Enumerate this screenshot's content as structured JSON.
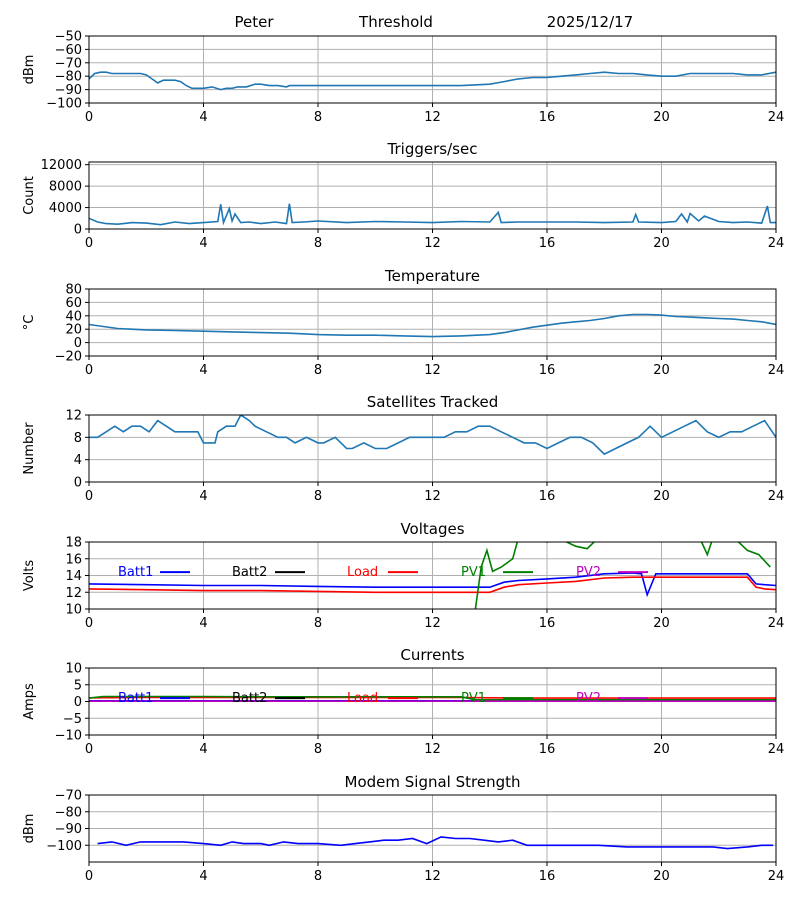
{
  "header": {
    "station": "Peter",
    "threshold": "Threshold",
    "date": "2025/12/17"
  },
  "colors": {
    "line": "#1f77b4",
    "grid": "#b0b0b0",
    "batt1": "#0000ff",
    "batt2": "#000000",
    "load": "#ff0000",
    "pv1": "#008000",
    "pv2": "#bf00bf"
  },
  "x_axis": {
    "ticks": [
      0,
      4,
      8,
      12,
      16,
      20,
      24
    ],
    "xlim": [
      0,
      24
    ]
  },
  "chart_data": [
    {
      "type": "line",
      "title": "",
      "ylabel": "dBm",
      "ylim": [
        -100,
        -50
      ],
      "yticks": [
        -100,
        -90,
        -80,
        -70,
        -60,
        -50
      ],
      "series": [
        {
          "color": "#1f77b4",
          "x": [
            0,
            0.2,
            0.4,
            0.6,
            0.8,
            1.0,
            1.2,
            1.5,
            1.8,
            2.0,
            2.2,
            2.4,
            2.6,
            2.8,
            3.0,
            3.2,
            3.4,
            3.6,
            3.8,
            4.0,
            4.3,
            4.6,
            4.8,
            5.0,
            5.2,
            5.5,
            5.8,
            6.0,
            6.3,
            6.6,
            6.9,
            7.0,
            7.5,
            8,
            9,
            10,
            11,
            12,
            13,
            14,
            14.5,
            15,
            15.5,
            16,
            16.5,
            17,
            17.5,
            18,
            18.5,
            19,
            19.5,
            20,
            20.5,
            21,
            21.5,
            22,
            22.5,
            23,
            23.5,
            24
          ],
          "y": [
            -82,
            -78,
            -77,
            -77,
            -78,
            -78,
            -78,
            -78,
            -78,
            -79,
            -82,
            -85,
            -83,
            -83,
            -83,
            -84,
            -87,
            -89,
            -89,
            -89,
            -88,
            -90,
            -89,
            -89,
            -88,
            -88,
            -86,
            -86,
            -87,
            -87,
            -88,
            -87,
            -87,
            -87,
            -87,
            -87,
            -87,
            -87,
            -87,
            -86,
            -84,
            -82,
            -81,
            -81,
            -80,
            -79,
            -78,
            -77,
            -78,
            -78,
            -79,
            -80,
            -80,
            -78,
            -78,
            -78,
            -78,
            -79,
            -79,
            -77
          ]
        }
      ]
    },
    {
      "type": "line",
      "title": "Triggers/sec",
      "ylabel": "Count",
      "ylim": [
        0,
        12500
      ],
      "yticks": [
        0,
        4000,
        8000,
        12000
      ],
      "series": [
        {
          "color": "#1f77b4",
          "x": [
            0,
            0.3,
            0.6,
            1.0,
            1.5,
            2.0,
            2.5,
            3.0,
            3.5,
            4.0,
            4.5,
            4.6,
            4.7,
            4.9,
            5.0,
            5.1,
            5.3,
            5.6,
            6.0,
            6.5,
            6.9,
            7.0,
            7.1,
            7.5,
            8,
            9,
            10,
            11,
            12,
            13,
            14,
            14.3,
            14.4,
            15,
            16,
            17,
            18,
            19,
            19.1,
            19.2,
            20,
            20.5,
            20.7,
            20.9,
            21,
            21.3,
            21.5,
            22,
            22.5,
            23,
            23.5,
            23.7,
            23.8,
            24
          ],
          "y": [
            2000,
            1300,
            1000,
            900,
            1200,
            1100,
            800,
            1300,
            1000,
            1200,
            1400,
            4600,
            1200,
            3800,
            1500,
            2800,
            1200,
            1300,
            1000,
            1300,
            1000,
            4700,
            1200,
            1300,
            1500,
            1200,
            1400,
            1300,
            1200,
            1400,
            1300,
            3100,
            1200,
            1300,
            1300,
            1300,
            1200,
            1300,
            2700,
            1300,
            1200,
            1400,
            2800,
            1300,
            2900,
            1500,
            2400,
            1400,
            1200,
            1300,
            1100,
            4300,
            1200,
            1200
          ]
        }
      ]
    },
    {
      "type": "line",
      "title": "Temperature",
      "ylabel": "°C",
      "ylim": [
        -20,
        80
      ],
      "yticks": [
        -20,
        0,
        20,
        40,
        60,
        80
      ],
      "series": [
        {
          "color": "#1f77b4",
          "x": [
            0,
            0.5,
            1,
            2,
            3,
            4,
            5,
            6,
            7,
            8,
            9,
            10,
            11,
            12,
            13,
            14,
            14.5,
            15,
            15.5,
            16,
            16.5,
            17,
            17.5,
            18,
            18.5,
            19,
            19.5,
            20,
            20.5,
            21,
            21.5,
            22,
            22.5,
            23,
            23.5,
            24
          ],
          "y": [
            27,
            24,
            21,
            19,
            18,
            17,
            16,
            15,
            14,
            12,
            11,
            11,
            10,
            9,
            10,
            12,
            15,
            19,
            23,
            26,
            29,
            31,
            33,
            36,
            40,
            42,
            42,
            41,
            39,
            38,
            37,
            36,
            35,
            33,
            31,
            27
          ]
        }
      ]
    },
    {
      "type": "line",
      "title": "Satellites Tracked",
      "ylabel": "Number",
      "ylim": [
        0,
        12
      ],
      "yticks": [
        0,
        4,
        8,
        12
      ],
      "series": [
        {
          "color": "#1f77b4",
          "x": [
            0,
            0.3,
            0.6,
            0.9,
            1.2,
            1.5,
            1.8,
            2.1,
            2.4,
            2.7,
            3.0,
            3.4,
            3.8,
            4.0,
            4.4,
            4.5,
            4.8,
            5.1,
            5.3,
            5.6,
            5.8,
            6.2,
            6.6,
            6.9,
            7.2,
            7.6,
            8.0,
            8.2,
            8.6,
            9.0,
            9.2,
            9.6,
            10.0,
            10.4,
            10.8,
            11.2,
            11.6,
            12.0,
            12.4,
            12.8,
            13.2,
            13.6,
            14.0,
            14.4,
            14.8,
            15.2,
            15.6,
            16.0,
            16.4,
            16.8,
            17.2,
            17.6,
            18.0,
            18.4,
            18.8,
            19.2,
            19.6,
            20.0,
            20.4,
            20.8,
            21.2,
            21.6,
            22.0,
            22.4,
            22.8,
            23.2,
            23.6,
            24
          ],
          "y": [
            8,
            8,
            9,
            10,
            9,
            10,
            10,
            9,
            11,
            10,
            9,
            9,
            9,
            7,
            7,
            9,
            10,
            10,
            12,
            11,
            10,
            9,
            8,
            8,
            7,
            8,
            7,
            7,
            8,
            6,
            6,
            7,
            6,
            6,
            7,
            8,
            8,
            8,
            8,
            9,
            9,
            10,
            10,
            9,
            8,
            7,
            7,
            6,
            7,
            8,
            8,
            7,
            5,
            6,
            7,
            8,
            10,
            8,
            9,
            10,
            11,
            9,
            8,
            9,
            9,
            10,
            11,
            8
          ]
        }
      ]
    },
    {
      "type": "line",
      "title": "Voltages",
      "ylabel": "Volts",
      "ylim": [
        10,
        18
      ],
      "yticks": [
        10,
        12,
        14,
        16,
        18
      ],
      "legend": [
        "Batt1",
        "Batt2",
        "Load",
        "PV1",
        "PV2"
      ],
      "series": [
        {
          "name": "Batt1",
          "color": "#0000ff",
          "x": [
            0,
            2,
            4,
            6,
            8,
            10,
            12,
            13,
            14,
            14.5,
            15,
            16,
            17,
            18,
            19,
            19.3,
            19.5,
            19.8,
            20,
            22,
            23,
            23.3,
            23.6,
            24
          ],
          "y": [
            13.0,
            12.9,
            12.8,
            12.8,
            12.7,
            12.6,
            12.6,
            12.6,
            12.6,
            13.2,
            13.4,
            13.6,
            13.8,
            14.2,
            14.3,
            14.2,
            11.7,
            14.2,
            14.2,
            14.2,
            14.2,
            13.0,
            12.9,
            12.8
          ]
        },
        {
          "name": "Load",
          "color": "#ff0000",
          "x": [
            0,
            2,
            4,
            6,
            8,
            10,
            12,
            13,
            14,
            14.5,
            15,
            16,
            17,
            18,
            19,
            20,
            22,
            23,
            23.3,
            23.6,
            24
          ],
          "y": [
            12.4,
            12.3,
            12.2,
            12.2,
            12.1,
            12.0,
            12.0,
            12.0,
            12.0,
            12.6,
            12.9,
            13.1,
            13.3,
            13.7,
            13.8,
            13.8,
            13.8,
            13.8,
            12.6,
            12.4,
            12.3
          ]
        },
        {
          "name": "PV1",
          "color": "#008000",
          "x": [
            13.5,
            13.7,
            13.9,
            14.1,
            14.4,
            14.8,
            15.0,
            15.5,
            16,
            16.5,
            17,
            17.4,
            17.8,
            18.2,
            18.6,
            19,
            19.4,
            19.8,
            20.2,
            20.6,
            21,
            21.4,
            21.6,
            21.8,
            22.2,
            22.6,
            23,
            23.4,
            23.8
          ],
          "y": [
            10,
            15,
            17,
            14.5,
            15,
            16,
            18.5,
            18.5,
            18,
            18.3,
            17.5,
            17.2,
            18.5,
            18.5,
            18.3,
            18.5,
            18.5,
            18.5,
            18.2,
            18.5,
            18.5,
            18,
            16.5,
            18.5,
            18.5,
            18.3,
            17,
            16.5,
            15
          ]
        }
      ]
    },
    {
      "type": "line",
      "title": "Currents",
      "ylabel": "Amps",
      "ylim": [
        -10,
        10
      ],
      "yticks": [
        -10,
        -5,
        0,
        5,
        10
      ],
      "legend": [
        "Batt1",
        "Batt2",
        "Load",
        "PV1",
        "PV2"
      ],
      "series": [
        {
          "name": "Batt1",
          "color": "#0000ff",
          "x": [
            0,
            24
          ],
          "y": [
            0.2,
            0.2
          ]
        },
        {
          "name": "Load",
          "color": "#ff0000",
          "x": [
            0,
            2,
            4,
            6,
            8,
            10,
            12,
            13,
            14,
            16,
            18,
            20,
            22,
            24
          ],
          "y": [
            1.1,
            1.2,
            1.2,
            1.2,
            1.2,
            1.2,
            1.2,
            1.2,
            1.1,
            1.0,
            1.0,
            1.0,
            1.0,
            1.0
          ]
        },
        {
          "name": "PV1",
          "color": "#008000",
          "x": [
            0,
            0.5,
            2,
            4,
            6,
            8,
            10,
            12,
            13,
            13.5,
            14,
            16,
            18,
            20,
            22,
            24
          ],
          "y": [
            1.0,
            1.5,
            1.5,
            1.5,
            1.4,
            1.4,
            1.4,
            1.4,
            1.4,
            0.5,
            0.5,
            0.5,
            0.5,
            0.5,
            0.5,
            0.5
          ]
        },
        {
          "name": "PV2",
          "color": "#bf00bf",
          "x": [
            0,
            24
          ],
          "y": [
            0.1,
            0.1
          ]
        }
      ]
    },
    {
      "type": "line",
      "title": "Modem Signal Strength",
      "ylabel": "dBm",
      "ylim": [
        -110,
        -70
      ],
      "yticks": [
        -100,
        -90,
        -80,
        -70
      ],
      "series": [
        {
          "color": "#0000ff",
          "x": [
            0.3,
            0.8,
            1.3,
            1.8,
            2.5,
            3.3,
            4.0,
            4.6,
            5.0,
            5.4,
            6.0,
            6.3,
            6.8,
            7.3,
            8.0,
            8.8,
            9.3,
            9.8,
            10.3,
            10.8,
            11.3,
            11.8,
            12.3,
            12.8,
            13.3,
            13.8,
            14.3,
            14.8,
            15.3,
            16.0,
            16.8,
            17.8,
            18.8,
            20.0,
            21.0,
            21.8,
            22.3,
            23.0,
            23.5,
            23.9
          ],
          "y": [
            -99,
            -98,
            -100,
            -98,
            -98,
            -98,
            -99,
            -100,
            -98,
            -99,
            -99,
            -100,
            -98,
            -99,
            -99,
            -100,
            -99,
            -98,
            -97,
            -97,
            -96,
            -99,
            -95,
            -96,
            -96,
            -97,
            -98,
            -97,
            -100,
            -100,
            -100,
            -100,
            -101,
            -101,
            -101,
            -101,
            -102,
            -101,
            -100,
            -100
          ]
        }
      ]
    }
  ]
}
